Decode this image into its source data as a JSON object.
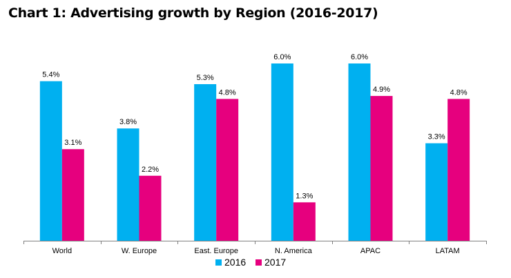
{
  "chart_data": {
    "type": "bar",
    "title": "Chart 1: Advertising growth by Region (2016-2017)",
    "categories": [
      "World",
      "W. Europe",
      "East. Europe",
      "N. America",
      "APAC",
      "LATAM"
    ],
    "series": [
      {
        "name": "2016",
        "color": "#00b0f0",
        "values": [
          5.4,
          3.8,
          5.3,
          6.0,
          6.0,
          3.3
        ],
        "labels": [
          "5.4%",
          "3.8%",
          "5.3%",
          "6.0%",
          "6.0%",
          "3.3%"
        ]
      },
      {
        "name": "2017",
        "color": "#e6007e",
        "values": [
          3.1,
          2.2,
          4.8,
          1.3,
          4.9,
          4.8
        ],
        "labels": [
          "3.1%",
          "2.2%",
          "4.8%",
          "1.3%",
          "4.9%",
          "4.8%"
        ]
      }
    ],
    "ylim": [
      0,
      6.0
    ],
    "grid": false,
    "legend_position": "bottom"
  }
}
